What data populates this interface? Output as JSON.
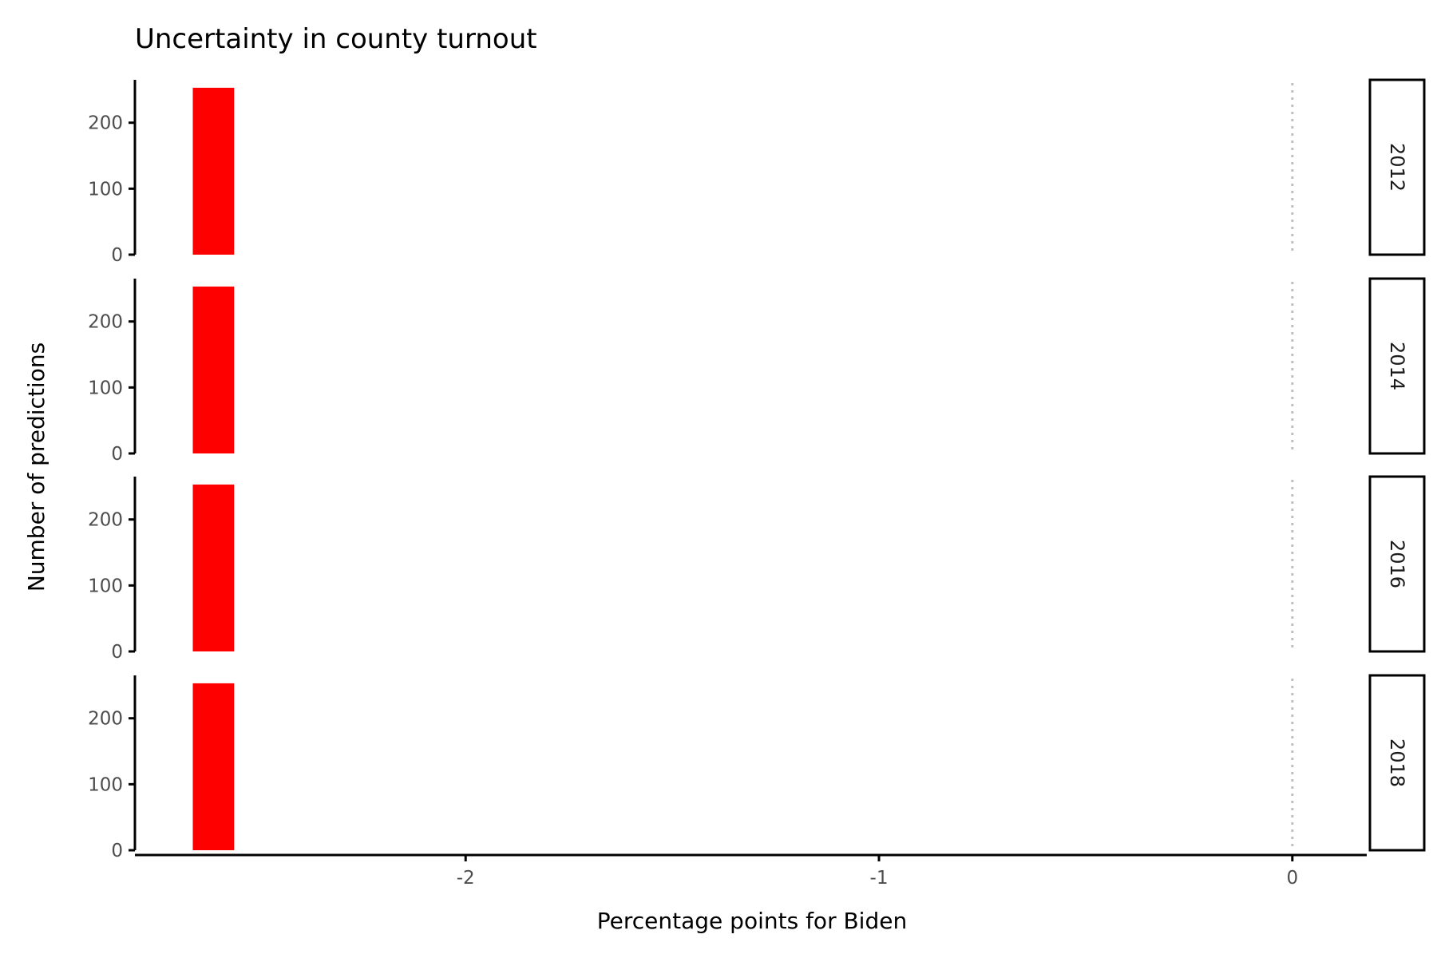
{
  "chart_data": {
    "type": "bar",
    "title": "Uncertainty in county turnout",
    "xlabel": "Percentage points for Biden",
    "ylabel": "Number of predictions",
    "xlim": [
      -2.8,
      0.18
    ],
    "ylim": [
      0,
      265
    ],
    "x_ticks": [
      -2,
      -1,
      0
    ],
    "x_tick_labels": [
      "-2",
      "-1",
      "0"
    ],
    "y_ticks": [
      0,
      100,
      200
    ],
    "y_tick_labels": [
      "0",
      "100",
      "200"
    ],
    "reference_line": {
      "x": 0,
      "style": "dotted",
      "color": "#bfbfbf"
    },
    "bar_color": "#ff0000",
    "grid": false,
    "facets": [
      {
        "label": "2012",
        "bars": [
          {
            "x0": -2.66,
            "x1": -2.56,
            "count": 253
          }
        ]
      },
      {
        "label": "2014",
        "bars": [
          {
            "x0": -2.66,
            "x1": -2.56,
            "count": 253
          }
        ]
      },
      {
        "label": "2016",
        "bars": [
          {
            "x0": -2.66,
            "x1": -2.56,
            "count": 253
          }
        ]
      },
      {
        "label": "2018",
        "bars": [
          {
            "x0": -2.66,
            "x1": -2.56,
            "count": 253
          }
        ]
      }
    ]
  }
}
